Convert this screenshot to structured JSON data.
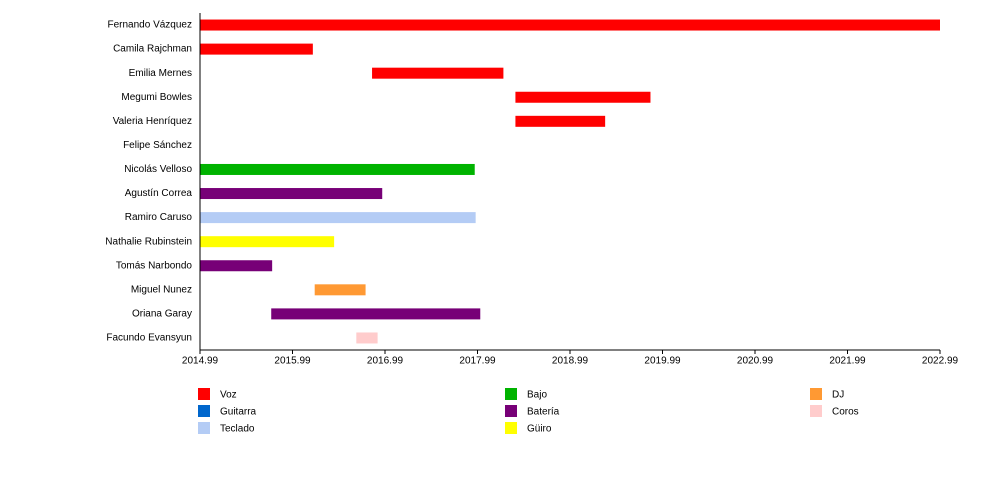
{
  "chart_data": {
    "type": "timeline",
    "categories": [
      "Fernando Vázquez",
      "Camila Rajchman",
      "Emilia Mernes",
      "Megumi Bowles",
      "Valeria Henríquez",
      "Felipe Sánchez",
      "Nicolás Velloso",
      "Agustín Correa",
      "Ramiro Caruso",
      "Nathalie Rubinstein",
      "Tomás Narbondo",
      "Miguel Nunez",
      "Oriana Garay",
      "Facundo Evansyun"
    ],
    "xlim": [
      2014.99,
      2022.99
    ],
    "xticks": [
      2014.99,
      2015.99,
      2016.99,
      2017.99,
      2018.99,
      2019.99,
      2020.99,
      2021.99,
      2022.99
    ],
    "series": [
      {
        "name": "Voz",
        "color": "#ff0000",
        "values": [
          [
            2014.99,
            2022.99
          ],
          [
            2014.99,
            2016.21
          ],
          [
            2016.85,
            2018.27
          ],
          [
            2018.4,
            2019.86
          ],
          [
            2018.4,
            2019.37
          ],
          null,
          null,
          null,
          null,
          null,
          null,
          null,
          null,
          null
        ]
      },
      {
        "name": "Guitarra",
        "color": "#0066cc",
        "values": [
          null,
          null,
          null,
          null,
          null,
          null,
          null,
          null,
          null,
          null,
          null,
          null,
          null,
          null
        ]
      },
      {
        "name": "Teclado",
        "color": "#b4ccf5",
        "values": [
          null,
          null,
          null,
          null,
          null,
          null,
          null,
          null,
          [
            2014.99,
            2017.97
          ],
          null,
          null,
          null,
          null,
          null
        ]
      },
      {
        "name": "Bajo",
        "color": "#00b300",
        "values": [
          null,
          null,
          null,
          null,
          null,
          null,
          [
            2014.99,
            2017.96
          ],
          null,
          null,
          null,
          null,
          null,
          null,
          null
        ]
      },
      {
        "name": "Batería",
        "color": "#770077",
        "values": [
          null,
          null,
          null,
          null,
          null,
          null,
          null,
          [
            2014.99,
            2016.96
          ],
          null,
          null,
          [
            2014.99,
            2015.77
          ],
          null,
          [
            2015.76,
            2018.02
          ],
          null
        ]
      },
      {
        "name": "Güiro",
        "color": "#ffff00",
        "values": [
          null,
          null,
          null,
          null,
          null,
          null,
          null,
          null,
          null,
          [
            2014.99,
            2016.44
          ],
          null,
          null,
          null,
          null
        ]
      },
      {
        "name": "DJ",
        "color": "#ff9933",
        "values": [
          null,
          null,
          null,
          null,
          null,
          null,
          null,
          null,
          null,
          null,
          null,
          [
            2016.23,
            2016.78
          ],
          null,
          null
        ]
      },
      {
        "name": "Coros",
        "color": "#ffcccc",
        "values": [
          null,
          null,
          null,
          null,
          null,
          null,
          null,
          null,
          null,
          null,
          null,
          null,
          null,
          [
            2016.68,
            2016.91
          ]
        ]
      }
    ]
  }
}
